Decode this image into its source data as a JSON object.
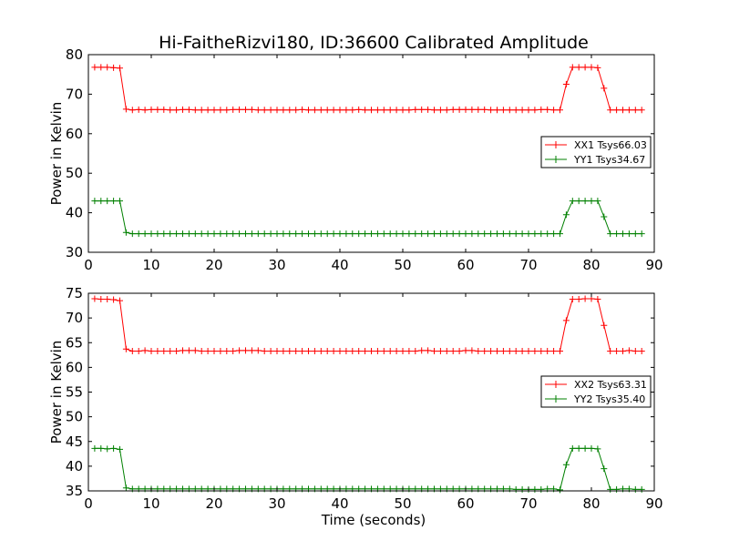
{
  "figure": {
    "title": "Hi-FaitheRizvi180, ID:36600 Calibrated Amplitude",
    "xlabel": "Time (seconds)"
  },
  "chart_data": [
    {
      "type": "line",
      "ylabel": "Power in Kelvin",
      "xlim": [
        0,
        90
      ],
      "ylim": [
        30,
        80
      ],
      "xticks": [
        0,
        10,
        20,
        30,
        40,
        50,
        60,
        70,
        80,
        90
      ],
      "yticks": [
        30,
        40,
        50,
        60,
        70,
        80
      ],
      "grid": false,
      "legend_position": "right",
      "markers": "plus",
      "series": [
        {
          "name": "XX1 Tsys66.03",
          "color": "#ff0000",
          "x": [
            1,
            2,
            3,
            4,
            5,
            6,
            7,
            8,
            9,
            10,
            11,
            12,
            13,
            14,
            15,
            16,
            17,
            18,
            19,
            20,
            21,
            22,
            23,
            24,
            25,
            26,
            27,
            28,
            29,
            30,
            31,
            32,
            33,
            34,
            35,
            36,
            37,
            38,
            39,
            40,
            41,
            42,
            43,
            44,
            45,
            46,
            47,
            48,
            49,
            50,
            51,
            52,
            53,
            54,
            55,
            56,
            57,
            58,
            59,
            60,
            61,
            62,
            63,
            64,
            65,
            66,
            67,
            68,
            69,
            70,
            71,
            72,
            73,
            74,
            75,
            76,
            77,
            78,
            79,
            80,
            81,
            82,
            83,
            84,
            85,
            86,
            87,
            88
          ],
          "y": [
            76.8,
            76.8,
            76.8,
            76.7,
            76.6,
            66.2,
            66.0,
            66.1,
            66.0,
            66.1,
            66.1,
            66.1,
            66.0,
            66.0,
            66.1,
            66.1,
            66.0,
            66.0,
            66.0,
            66.0,
            66.0,
            66.0,
            66.1,
            66.1,
            66.1,
            66.1,
            66.0,
            66.0,
            66.0,
            66.0,
            66.0,
            66.0,
            66.0,
            66.1,
            66.0,
            66.0,
            66.0,
            66.0,
            66.0,
            66.0,
            66.0,
            66.0,
            66.1,
            66.0,
            66.0,
            66.0,
            66.0,
            66.0,
            66.0,
            66.0,
            66.0,
            66.1,
            66.1,
            66.1,
            66.0,
            66.0,
            66.0,
            66.1,
            66.1,
            66.1,
            66.1,
            66.1,
            66.1,
            66.0,
            66.0,
            66.0,
            66.0,
            66.0,
            66.0,
            66.0,
            66.0,
            66.1,
            66.1,
            66.0,
            66.0,
            72.5,
            76.8,
            76.8,
            76.8,
            76.8,
            76.7,
            71.5,
            66.0,
            66.0,
            66.0,
            66.0,
            66.0,
            66.0
          ]
        },
        {
          "name": "YY1 Tsys34.67",
          "color": "#008000",
          "x": [
            1,
            2,
            3,
            4,
            5,
            6,
            7,
            8,
            9,
            10,
            11,
            12,
            13,
            14,
            15,
            16,
            17,
            18,
            19,
            20,
            21,
            22,
            23,
            24,
            25,
            26,
            27,
            28,
            29,
            30,
            31,
            32,
            33,
            34,
            35,
            36,
            37,
            38,
            39,
            40,
            41,
            42,
            43,
            44,
            45,
            46,
            47,
            48,
            49,
            50,
            51,
            52,
            53,
            54,
            55,
            56,
            57,
            58,
            59,
            60,
            61,
            62,
            63,
            64,
            65,
            66,
            67,
            68,
            69,
            70,
            71,
            72,
            73,
            74,
            75,
            76,
            77,
            78,
            79,
            80,
            81,
            82,
            83,
            84,
            85,
            86,
            87,
            88
          ],
          "y": [
            43.0,
            43.0,
            43.0,
            43.0,
            43.0,
            35.0,
            34.7,
            34.7,
            34.7,
            34.7,
            34.7,
            34.7,
            34.7,
            34.7,
            34.7,
            34.7,
            34.7,
            34.7,
            34.7,
            34.7,
            34.7,
            34.7,
            34.7,
            34.7,
            34.7,
            34.7,
            34.7,
            34.7,
            34.7,
            34.7,
            34.7,
            34.7,
            34.7,
            34.7,
            34.7,
            34.7,
            34.7,
            34.7,
            34.7,
            34.7,
            34.7,
            34.7,
            34.7,
            34.7,
            34.7,
            34.7,
            34.7,
            34.7,
            34.7,
            34.7,
            34.7,
            34.7,
            34.7,
            34.7,
            34.7,
            34.7,
            34.7,
            34.7,
            34.7,
            34.7,
            34.7,
            34.7,
            34.7,
            34.7,
            34.7,
            34.7,
            34.7,
            34.7,
            34.7,
            34.7,
            34.7,
            34.7,
            34.7,
            34.7,
            34.7,
            39.5,
            43.0,
            43.0,
            43.0,
            43.0,
            43.0,
            39.0,
            34.7,
            34.7,
            34.7,
            34.7,
            34.7,
            34.7
          ]
        }
      ]
    },
    {
      "type": "line",
      "ylabel": "Power in Kelvin",
      "xlabel": "Time (seconds)",
      "xlim": [
        0,
        90
      ],
      "ylim": [
        35,
        75
      ],
      "xticks": [
        0,
        10,
        20,
        30,
        40,
        50,
        60,
        70,
        80,
        90
      ],
      "yticks": [
        35,
        40,
        45,
        50,
        55,
        60,
        65,
        70,
        75
      ],
      "grid": false,
      "legend_position": "right",
      "markers": "plus",
      "series": [
        {
          "name": "XX2 Tsys63.31",
          "color": "#ff0000",
          "x": [
            1,
            2,
            3,
            4,
            5,
            6,
            7,
            8,
            9,
            10,
            11,
            12,
            13,
            14,
            15,
            16,
            17,
            18,
            19,
            20,
            21,
            22,
            23,
            24,
            25,
            26,
            27,
            28,
            29,
            30,
            31,
            32,
            33,
            34,
            35,
            36,
            37,
            38,
            39,
            40,
            41,
            42,
            43,
            44,
            45,
            46,
            47,
            48,
            49,
            50,
            51,
            52,
            53,
            54,
            55,
            56,
            57,
            58,
            59,
            60,
            61,
            62,
            63,
            64,
            65,
            66,
            67,
            68,
            69,
            70,
            71,
            72,
            73,
            74,
            75,
            76,
            77,
            78,
            79,
            80,
            81,
            82,
            83,
            84,
            85,
            86,
            87,
            88
          ],
          "y": [
            73.9,
            73.8,
            73.8,
            73.7,
            73.5,
            63.7,
            63.3,
            63.3,
            63.4,
            63.3,
            63.3,
            63.3,
            63.3,
            63.3,
            63.4,
            63.4,
            63.4,
            63.3,
            63.3,
            63.3,
            63.3,
            63.3,
            63.3,
            63.4,
            63.4,
            63.4,
            63.4,
            63.3,
            63.3,
            63.3,
            63.3,
            63.3,
            63.3,
            63.3,
            63.3,
            63.3,
            63.3,
            63.3,
            63.3,
            63.3,
            63.3,
            63.3,
            63.3,
            63.3,
            63.3,
            63.3,
            63.3,
            63.3,
            63.3,
            63.3,
            63.3,
            63.3,
            63.4,
            63.4,
            63.3,
            63.3,
            63.3,
            63.3,
            63.3,
            63.4,
            63.4,
            63.3,
            63.3,
            63.3,
            63.3,
            63.3,
            63.3,
            63.3,
            63.3,
            63.3,
            63.3,
            63.3,
            63.3,
            63.3,
            63.3,
            69.5,
            73.8,
            73.8,
            73.9,
            73.9,
            73.8,
            68.5,
            63.3,
            63.3,
            63.3,
            63.4,
            63.3,
            63.3
          ]
        },
        {
          "name": "YY2 Tsys35.40",
          "color": "#008000",
          "x": [
            1,
            2,
            3,
            4,
            5,
            6,
            7,
            8,
            9,
            10,
            11,
            12,
            13,
            14,
            15,
            16,
            17,
            18,
            19,
            20,
            21,
            22,
            23,
            24,
            25,
            26,
            27,
            28,
            29,
            30,
            31,
            32,
            33,
            34,
            35,
            36,
            37,
            38,
            39,
            40,
            41,
            42,
            43,
            44,
            45,
            46,
            47,
            48,
            49,
            50,
            51,
            52,
            53,
            54,
            55,
            56,
            57,
            58,
            59,
            60,
            61,
            62,
            63,
            64,
            65,
            66,
            67,
            68,
            69,
            70,
            71,
            72,
            73,
            74,
            75,
            76,
            77,
            78,
            79,
            80,
            81,
            82,
            83,
            84,
            85,
            86,
            87,
            88
          ],
          "y": [
            43.6,
            43.6,
            43.5,
            43.6,
            43.4,
            35.6,
            35.4,
            35.4,
            35.4,
            35.4,
            35.4,
            35.4,
            35.4,
            35.4,
            35.4,
            35.4,
            35.4,
            35.4,
            35.4,
            35.4,
            35.4,
            35.4,
            35.4,
            35.4,
            35.4,
            35.4,
            35.4,
            35.4,
            35.4,
            35.4,
            35.4,
            35.4,
            35.4,
            35.4,
            35.4,
            35.4,
            35.4,
            35.4,
            35.4,
            35.4,
            35.4,
            35.4,
            35.4,
            35.4,
            35.4,
            35.4,
            35.4,
            35.4,
            35.4,
            35.4,
            35.4,
            35.4,
            35.4,
            35.4,
            35.4,
            35.4,
            35.4,
            35.4,
            35.4,
            35.4,
            35.4,
            35.4,
            35.4,
            35.4,
            35.4,
            35.4,
            35.4,
            35.3,
            35.3,
            35.3,
            35.3,
            35.3,
            35.4,
            35.4,
            35.2,
            40.3,
            43.6,
            43.6,
            43.6,
            43.6,
            43.5,
            39.5,
            35.3,
            35.3,
            35.4,
            35.4,
            35.3,
            35.3
          ]
        }
      ]
    }
  ]
}
